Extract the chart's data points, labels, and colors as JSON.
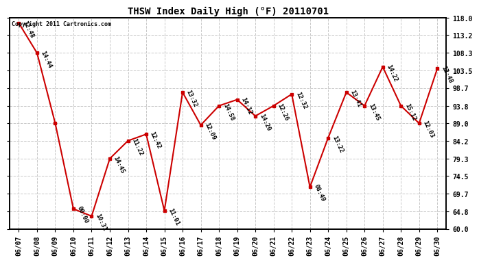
{
  "title": "THSW Index Daily High (°F) 20110701",
  "copyright": "Copyright 2011 Cartronics.com",
  "background_color": "#ffffff",
  "plot_background": "#ffffff",
  "grid_color": "#c8c8c8",
  "line_color": "#cc0000",
  "marker_color": "#cc0000",
  "text_color": "#000000",
  "dates": [
    "06/07",
    "06/08",
    "06/09",
    "06/10",
    "06/11",
    "06/12",
    "06/13",
    "06/14",
    "06/15",
    "06/16",
    "06/17",
    "06/18",
    "06/19",
    "06/20",
    "06/21",
    "06/22",
    "06/23",
    "06/24",
    "06/25",
    "06/26",
    "06/27",
    "06/28",
    "06/29",
    "06/30"
  ],
  "values": [
    116.5,
    108.3,
    89.0,
    65.5,
    63.5,
    79.3,
    84.2,
    86.0,
    65.0,
    97.5,
    88.5,
    93.8,
    95.5,
    91.0,
    93.8,
    97.0,
    71.5,
    85.0,
    97.5,
    93.8,
    104.5,
    93.8,
    89.0,
    104.0
  ],
  "time_labels": [
    "12:48",
    "14:44",
    "",
    "00:00",
    "10:31",
    "14:45",
    "11:22",
    "12:42",
    "11:01",
    "13:32",
    "12:09",
    "14:58",
    "14:12",
    "14:20",
    "12:26",
    "12:32",
    "08:49",
    "13:22",
    "13:41",
    "13:45",
    "14:22",
    "15:12",
    "12:03",
    "12:48"
  ],
  "ylim": [
    60.0,
    118.0
  ],
  "yticks": [
    60.0,
    64.8,
    69.7,
    74.5,
    79.3,
    84.2,
    89.0,
    93.8,
    98.7,
    103.5,
    108.3,
    113.2,
    118.0
  ],
  "title_fontsize": 10,
  "label_fontsize": 7,
  "annot_fontsize": 6.5
}
